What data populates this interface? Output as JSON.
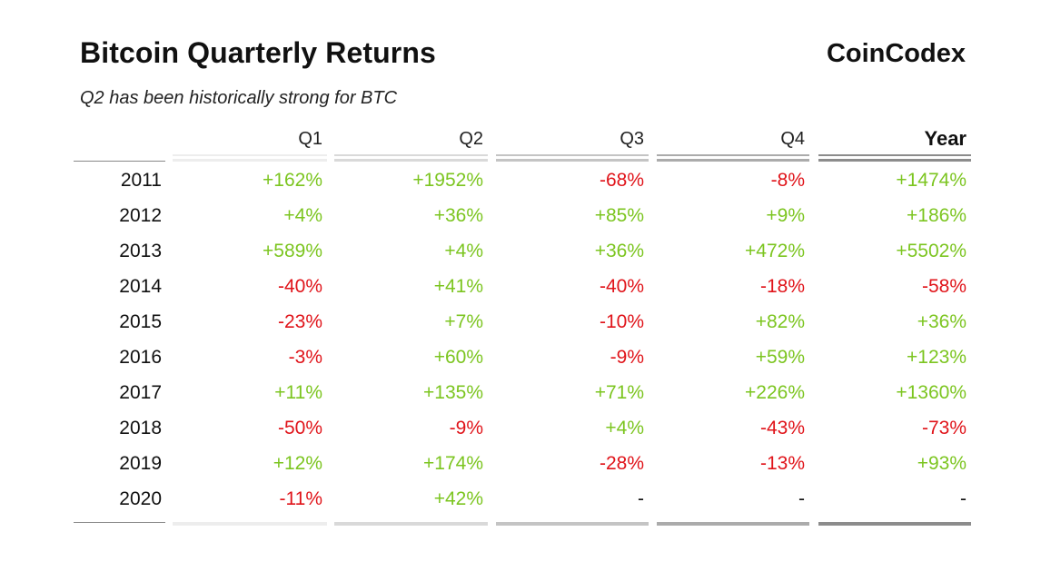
{
  "title": "Bitcoin Quarterly Returns",
  "brand": "CoinCodex",
  "subtitle": "Q2 has been historically strong for BTC",
  "colors": {
    "positive": "#7cc520",
    "negative": "#e0141a",
    "neutral": "#111111"
  },
  "chart_data": {
    "type": "table",
    "title": "Bitcoin Quarterly Returns",
    "subtitle": "Q2 has been historically strong for BTC",
    "columns": [
      "Q1",
      "Q2",
      "Q3",
      "Q4",
      "Year"
    ],
    "rows": [
      {
        "year": "2011",
        "values": [
          "+162%",
          "+1952%",
          "-68%",
          "-8%",
          "+1474%"
        ]
      },
      {
        "year": "2012",
        "values": [
          "+4%",
          "+36%",
          "+85%",
          "+9%",
          "+186%"
        ]
      },
      {
        "year": "2013",
        "values": [
          "+589%",
          "+4%",
          "+36%",
          "+472%",
          "+5502%"
        ]
      },
      {
        "year": "2014",
        "values": [
          "-40%",
          "+41%",
          "-40%",
          "-18%",
          "-58%"
        ]
      },
      {
        "year": "2015",
        "values": [
          "-23%",
          "+7%",
          "-10%",
          "+82%",
          "+36%"
        ]
      },
      {
        "year": "2016",
        "values": [
          "-3%",
          "+60%",
          "-9%",
          "+59%",
          "+123%"
        ]
      },
      {
        "year": "2017",
        "values": [
          "+11%",
          "+135%",
          "+71%",
          "+226%",
          "+1360%"
        ]
      },
      {
        "year": "2018",
        "values": [
          "-50%",
          "-9%",
          "+4%",
          "-43%",
          "-73%"
        ]
      },
      {
        "year": "2019",
        "values": [
          "+12%",
          "+174%",
          "-28%",
          "-13%",
          "+93%"
        ]
      },
      {
        "year": "2020",
        "values": [
          "-11%",
          "+42%",
          "-",
          "-",
          "-"
        ]
      }
    ]
  }
}
